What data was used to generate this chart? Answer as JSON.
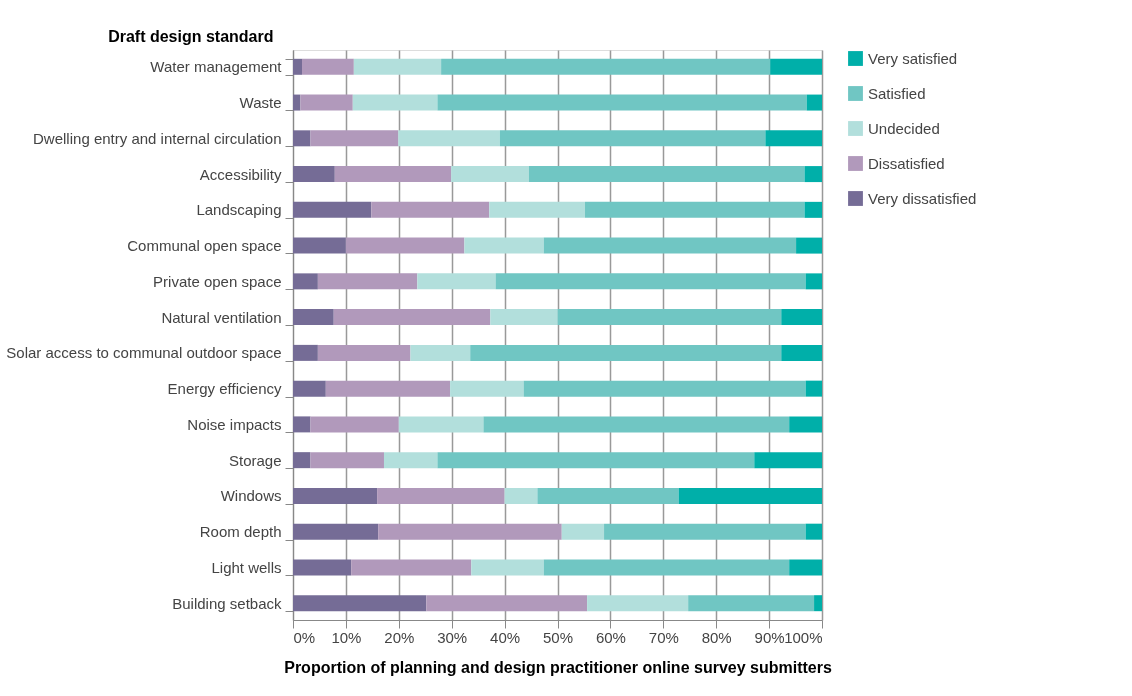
{
  "chart_data": {
    "type": "bar",
    "orientation": "horizontal",
    "stacked": true,
    "xlabel": "Proportion of planning and design practitioner online survey submitters",
    "ylabel": "Draft design standard",
    "categories": [
      "Water management",
      "Waste",
      "Dwelling entry and internal circulation",
      "Accessibility",
      "Landscaping",
      "Communal open space",
      "Private open space",
      "Natural ventilation",
      "Solar access to communal outdoor space",
      "Energy efficiency",
      "Noise impacts",
      "Storage",
      "Windows",
      "Room depth",
      "Light wells",
      "Building setback"
    ],
    "series": [
      {
        "name": "Very dissatisfied",
        "color": "#756c96",
        "values": [
          1.7,
          1.4,
          3.3,
          7.9,
          14.8,
          10.0,
          4.7,
          7.7,
          4.7,
          6.2,
          3.3,
          3.3,
          15.9,
          16.1,
          11.0,
          25.2
        ]
      },
      {
        "name": "Dissatisfied",
        "color": "#b199bb",
        "values": [
          9.8,
          9.9,
          16.6,
          22.0,
          22.3,
          22.4,
          18.8,
          29.6,
          17.5,
          23.5,
          16.7,
          13.9,
          24.1,
          34.7,
          22.7,
          30.4
        ]
      },
      {
        "name": "Undecided",
        "color": "#b2dfdc",
        "values": [
          16.5,
          16.0,
          19.2,
          14.7,
          18.1,
          15.0,
          14.8,
          12.7,
          11.3,
          13.9,
          16.0,
          10.1,
          6.2,
          8.0,
          13.7,
          19.1
        ]
      },
      {
        "name": "Satisfied",
        "color": "#70c6c3",
        "values": [
          62.2,
          69.8,
          50.2,
          52.1,
          41.5,
          47.7,
          58.6,
          42.3,
          58.8,
          53.3,
          57.8,
          59.9,
          26.7,
          38.1,
          46.4,
          23.8
        ]
      },
      {
        "name": "Very satisfied",
        "color": "#00afa9",
        "values": [
          9.8,
          2.9,
          10.7,
          3.3,
          3.3,
          4.9,
          3.1,
          7.7,
          7.7,
          3.1,
          6.2,
          12.8,
          27.1,
          3.1,
          6.2,
          1.5
        ]
      }
    ],
    "xlim": [
      0,
      100
    ],
    "xticks": [
      {
        "value": 0,
        "label": "0%"
      },
      {
        "value": 10,
        "label": "10%"
      },
      {
        "value": 20,
        "label": "20%"
      },
      {
        "value": 30,
        "label": "30%"
      },
      {
        "value": 40,
        "label": "40%"
      },
      {
        "value": 50,
        "label": "50%"
      },
      {
        "value": 60,
        "label": "60%"
      },
      {
        "value": 70,
        "label": "70%"
      },
      {
        "value": 80,
        "label": "80%"
      },
      {
        "value": 90,
        "label": "90%"
      },
      {
        "value": 100,
        "label": "100%"
      }
    ],
    "grid": "x",
    "legend": "top right"
  }
}
